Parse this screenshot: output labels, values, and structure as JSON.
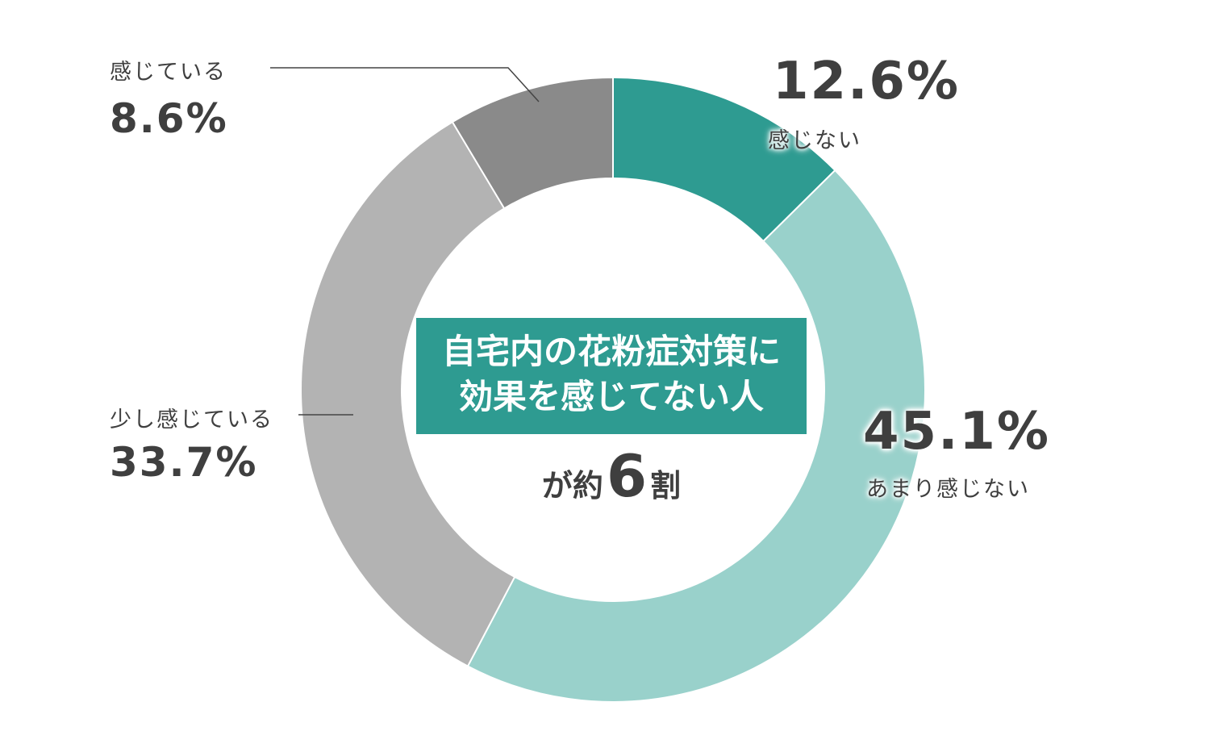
{
  "chart_data": {
    "type": "pie",
    "variant": "donut",
    "start": "top, clockwise",
    "slices": [
      {
        "label": "感じない",
        "value": 12.6,
        "value_label": "12.6%",
        "color": "#2e9b91"
      },
      {
        "label": "あまり感じない",
        "value": 45.1,
        "value_label": "45.1%",
        "color": "#99d1cb"
      },
      {
        "label": "少し感じている",
        "value": 33.7,
        "value_label": "33.7%",
        "color": "#b3b3b3"
      },
      {
        "label": "感じている",
        "value": 8.6,
        "value_label": "8.6%",
        "color": "#8a8a8a"
      }
    ],
    "center": {
      "headline_line1": "自宅内の花粉症対策に",
      "headline_line2": "効果を感じてない人",
      "sub_prefix": "が約",
      "sub_number": "6",
      "sub_suffix": "割"
    }
  }
}
